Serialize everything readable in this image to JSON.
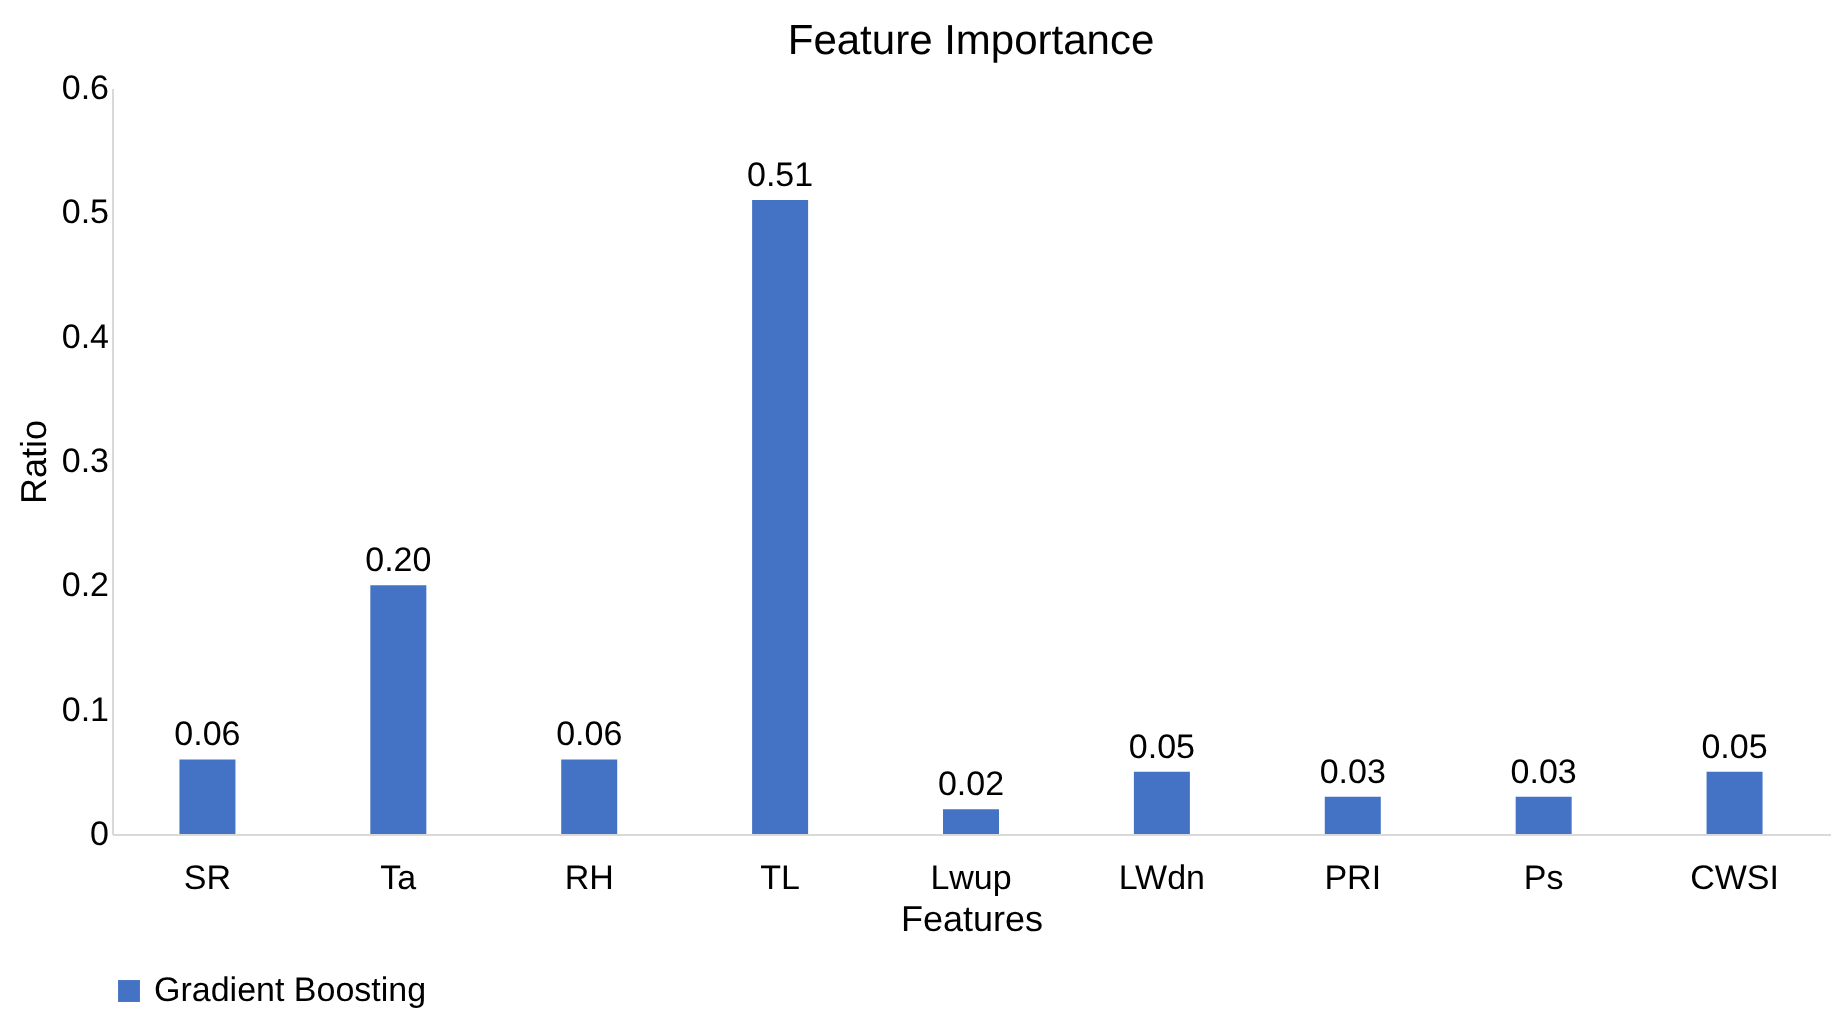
{
  "chart_data": {
    "type": "bar",
    "title": "Feature Importance",
    "xlabel": "Features",
    "ylabel": "Ratio",
    "categories": [
      "SR",
      "Ta",
      "RH",
      "TL",
      "Lwup",
      "LWdn",
      "PRI",
      "Ps",
      "CWSI"
    ],
    "series": [
      {
        "name": "Gradient Boosting",
        "color": "#4472c4",
        "values": [
          0.06,
          0.2,
          0.06,
          0.51,
          0.02,
          0.05,
          0.03,
          0.03,
          0.05
        ],
        "value_labels": [
          "0.06",
          "0.20",
          "0.06",
          "0.51",
          "0.02",
          "0.05",
          "0.03",
          "0.03",
          "0.05"
        ]
      }
    ],
    "ylim": [
      0,
      0.6
    ],
    "yticks": [
      0,
      0.1,
      0.2,
      0.3,
      0.4,
      0.5,
      0.6
    ],
    "grid": false,
    "legend": "bottom"
  }
}
